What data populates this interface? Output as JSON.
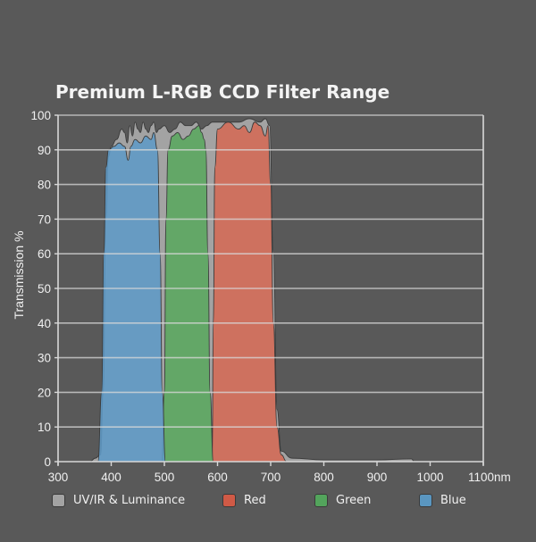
{
  "chart_data": {
    "type": "area",
    "title": "Premium L-RGB CCD Filter Range",
    "xlabel": "nm",
    "ylabel": "Transmission %",
    "xlim": [
      300,
      1100
    ],
    "ylim": [
      0,
      100
    ],
    "x_ticks": [
      "300",
      "400",
      "500",
      "600",
      "700",
      "800",
      "900",
      "1000",
      "1100nm"
    ],
    "y_ticks": [
      "0",
      "10",
      "20",
      "30",
      "40",
      "50",
      "60",
      "70",
      "80",
      "90",
      "100"
    ],
    "grid": true,
    "legend_position": "bottom",
    "series": [
      {
        "name": "UV/IR & Luminance",
        "color": "#a3a3a3",
        "points": [
          [
            300,
            0
          ],
          [
            360,
            0
          ],
          [
            370,
            1
          ],
          [
            380,
            2
          ],
          [
            385,
            20
          ],
          [
            390,
            70
          ],
          [
            395,
            88
          ],
          [
            400,
            91
          ],
          [
            410,
            93
          ],
          [
            420,
            96
          ],
          [
            425,
            95
          ],
          [
            430,
            92
          ],
          [
            435,
            97
          ],
          [
            440,
            94
          ],
          [
            445,
            98
          ],
          [
            450,
            96
          ],
          [
            455,
            95
          ],
          [
            460,
            98
          ],
          [
            465,
            96
          ],
          [
            470,
            95
          ],
          [
            475,
            97
          ],
          [
            480,
            98
          ],
          [
            485,
            95
          ],
          [
            490,
            96
          ],
          [
            500,
            97
          ],
          [
            510,
            95
          ],
          [
            520,
            96
          ],
          [
            530,
            98
          ],
          [
            540,
            97
          ],
          [
            550,
            97
          ],
          [
            560,
            98
          ],
          [
            570,
            96
          ],
          [
            580,
            97
          ],
          [
            590,
            98
          ],
          [
            600,
            98
          ],
          [
            620,
            98
          ],
          [
            640,
            98
          ],
          [
            660,
            99
          ],
          [
            680,
            98
          ],
          [
            690,
            99
          ],
          [
            698,
            97
          ],
          [
            705,
            60
          ],
          [
            712,
            15
          ],
          [
            720,
            3
          ],
          [
            740,
            1
          ],
          [
            800,
            0.5
          ],
          [
            900,
            0.5
          ],
          [
            965,
            0.8
          ],
          [
            970,
            0
          ],
          [
            1100,
            0
          ]
        ]
      },
      {
        "name": "Red",
        "color": "#d46a55",
        "points": [
          [
            590,
            0
          ],
          [
            592,
            40
          ],
          [
            595,
            85
          ],
          [
            600,
            96
          ],
          [
            620,
            98
          ],
          [
            640,
            96
          ],
          [
            650,
            97
          ],
          [
            660,
            95
          ],
          [
            670,
            98
          ],
          [
            680,
            97
          ],
          [
            690,
            94
          ],
          [
            695,
            97
          ],
          [
            700,
            80
          ],
          [
            705,
            40
          ],
          [
            712,
            10
          ],
          [
            720,
            2
          ],
          [
            730,
            0
          ]
        ]
      },
      {
        "name": "Green",
        "color": "#5aa75f",
        "points": [
          [
            495,
            0
          ],
          [
            500,
            20
          ],
          [
            503,
            70
          ],
          [
            507,
            90
          ],
          [
            515,
            94
          ],
          [
            525,
            95
          ],
          [
            535,
            93
          ],
          [
            545,
            94
          ],
          [
            555,
            96
          ],
          [
            565,
            97
          ],
          [
            570,
            95
          ],
          [
            575,
            93
          ],
          [
            578,
            90
          ],
          [
            582,
            60
          ],
          [
            586,
            20
          ],
          [
            592,
            0
          ]
        ]
      },
      {
        "name": "Blue",
        "color": "#5f9ac6",
        "points": [
          [
            375,
            0
          ],
          [
            382,
            20
          ],
          [
            386,
            60
          ],
          [
            390,
            85
          ],
          [
            395,
            90
          ],
          [
            405,
            91
          ],
          [
            415,
            92
          ],
          [
            425,
            91
          ],
          [
            432,
            87
          ],
          [
            437,
            91
          ],
          [
            445,
            93
          ],
          [
            455,
            92
          ],
          [
            465,
            94
          ],
          [
            475,
            93
          ],
          [
            480,
            95
          ],
          [
            487,
            90
          ],
          [
            492,
            60
          ],
          [
            496,
            20
          ],
          [
            502,
            0
          ]
        ]
      }
    ]
  },
  "legend": {
    "items": [
      {
        "label": "UV/IR & Luminance",
        "color": "#a3a3a3"
      },
      {
        "label": "Red",
        "color": "#d05a46"
      },
      {
        "label": "Green",
        "color": "#53a45c"
      },
      {
        "label": "Blue",
        "color": "#5a96c0"
      }
    ]
  }
}
